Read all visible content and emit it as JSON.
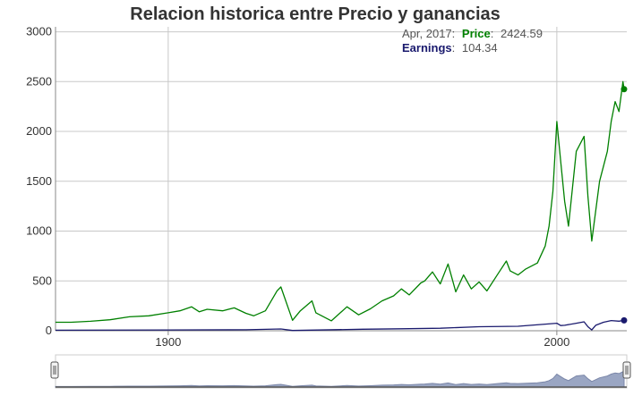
{
  "chart_data": {
    "type": "line",
    "title": "Relacion historica entre Precio y ganancias",
    "x_ticks": [
      1900,
      2000
    ],
    "y_ticks": [
      0,
      500,
      1000,
      1500,
      2000,
      2500,
      3000
    ],
    "xlim": [
      1871,
      2018
    ],
    "ylim": [
      0,
      3050
    ],
    "grid": true,
    "legend_position": "top-right",
    "series": [
      {
        "name": "Price",
        "color": "#008000",
        "x": [
          1871,
          1875,
          1880,
          1885,
          1890,
          1895,
          1900,
          1903,
          1906,
          1908,
          1910,
          1914,
          1917,
          1920,
          1922,
          1925,
          1928,
          1929,
          1932,
          1934,
          1937,
          1938,
          1942,
          1946,
          1949,
          1952,
          1955,
          1958,
          1960,
          1962,
          1965,
          1966,
          1968,
          1970,
          1972,
          1974,
          1976,
          1978,
          1980,
          1982,
          1985,
          1987,
          1988,
          1990,
          1992,
          1995,
          1997,
          1998,
          1999,
          2000,
          2001,
          2002,
          2003,
          2005,
          2007,
          2008,
          2009,
          2011,
          2013,
          2014,
          2015,
          2016,
          2017,
          2017.3
        ],
        "y": [
          85,
          85,
          95,
          110,
          140,
          150,
          180,
          200,
          240,
          190,
          215,
          200,
          230,
          175,
          150,
          200,
          400,
          440,
          105,
          200,
          300,
          180,
          100,
          240,
          160,
          220,
          300,
          350,
          420,
          360,
          480,
          500,
          590,
          470,
          670,
          390,
          560,
          420,
          490,
          400,
          580,
          700,
          600,
          560,
          620,
          680,
          850,
          1050,
          1400,
          2100,
          1700,
          1300,
          1050,
          1800,
          1950,
          1350,
          900,
          1500,
          1800,
          2100,
          2300,
          2200,
          2500,
          2424.59
        ]
      },
      {
        "name": "Earnings",
        "color": "#1a1a6e",
        "x": [
          1871,
          1900,
          1920,
          1929,
          1932,
          1950,
          1960,
          1970,
          1980,
          1990,
          2000,
          2001,
          2002,
          2005,
          2007,
          2008,
          2009,
          2010,
          2012,
          2014,
          2016,
          2017.3
        ],
        "y": [
          5,
          8,
          10,
          18,
          3,
          15,
          20,
          25,
          40,
          45,
          75,
          52,
          55,
          75,
          90,
          40,
          8,
          55,
          85,
          102,
          96,
          104.34
        ]
      }
    ],
    "tooltip": {
      "date": "Apr, 2017:",
      "price_label": "Price",
      "price_value": "2424.59",
      "earnings_label": "Earnings",
      "earnings_value": "104.34"
    }
  },
  "navigator": {
    "fill_color": "#9aa6c3"
  }
}
